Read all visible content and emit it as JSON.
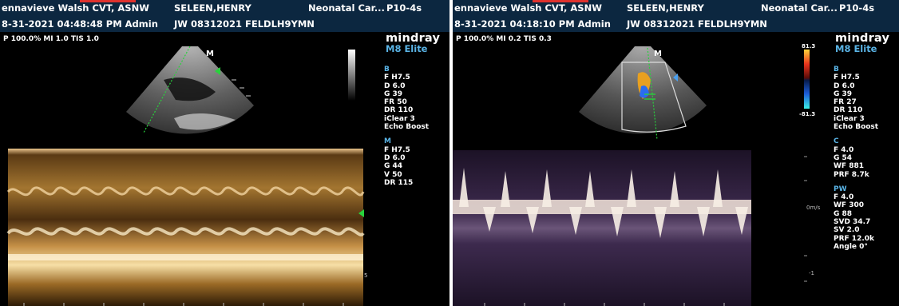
{
  "left": {
    "header": {
      "operator": "ennavieve Walsh CVT, ASNW",
      "datetime": "8-31-2021 04:48:48 PM  Admin",
      "patient": "SELEEN,HENRY",
      "patient_id": "JW 08312021 FELDLH9YMN",
      "exam": "Neonatal Car...",
      "probe": "P10-4s"
    },
    "mi_line": "P 100.0%  MI 1.0  TIS 1.0",
    "brand": {
      "logo": "mindray",
      "model": "M8 Elite"
    },
    "marker": "M",
    "b_mode": {
      "title": "B",
      "items": [
        "F H7.5",
        "D 6.0",
        "G 39",
        "FR 50",
        "DR 110",
        "iClear 3",
        "Echo Boost"
      ]
    },
    "m_mode": {
      "title": "M",
      "items": [
        "F H7.5",
        "D 6.0",
        "G 44",
        "V 50",
        "DR 115"
      ]
    },
    "depth_marks": [
      "5"
    ]
  },
  "right": {
    "header": {
      "operator": "ennavieve Walsh CVT, ASNW",
      "datetime": "8-31-2021 04:18:10 PM  Admin",
      "patient": "SELEEN,HENRY",
      "patient_id": "JW 08312021 FELDLH9YMN",
      "exam": "Neonatal Car...",
      "probe": "P10-4s"
    },
    "mi_line": "P 100.0%  MI 0.2  TIS 0.3",
    "brand": {
      "logo": "mindray",
      "model": "M8 Elite"
    },
    "marker": "M",
    "color_scale": {
      "top": "81.3",
      "bottom": "-81.3"
    },
    "b_mode": {
      "title": "B",
      "items": [
        "F H7.5",
        "D 6.0",
        "G 39",
        "FR 27",
        "DR 110",
        "iClear 3",
        "Echo Boost"
      ]
    },
    "c_mode": {
      "title": "C",
      "items": [
        "F 4.0",
        "G 54",
        "WF 881",
        "PRF 8.7k"
      ]
    },
    "pw_mode": {
      "title": "PW",
      "items": [
        "F 4.0",
        "WF 300",
        "G 88",
        "SVD 34.7",
        "SV 2.0",
        "PRF 12.0k",
        "Angle 0°"
      ]
    },
    "baseline_label": "0m/s",
    "scale_marks": [
      "-1"
    ]
  }
}
